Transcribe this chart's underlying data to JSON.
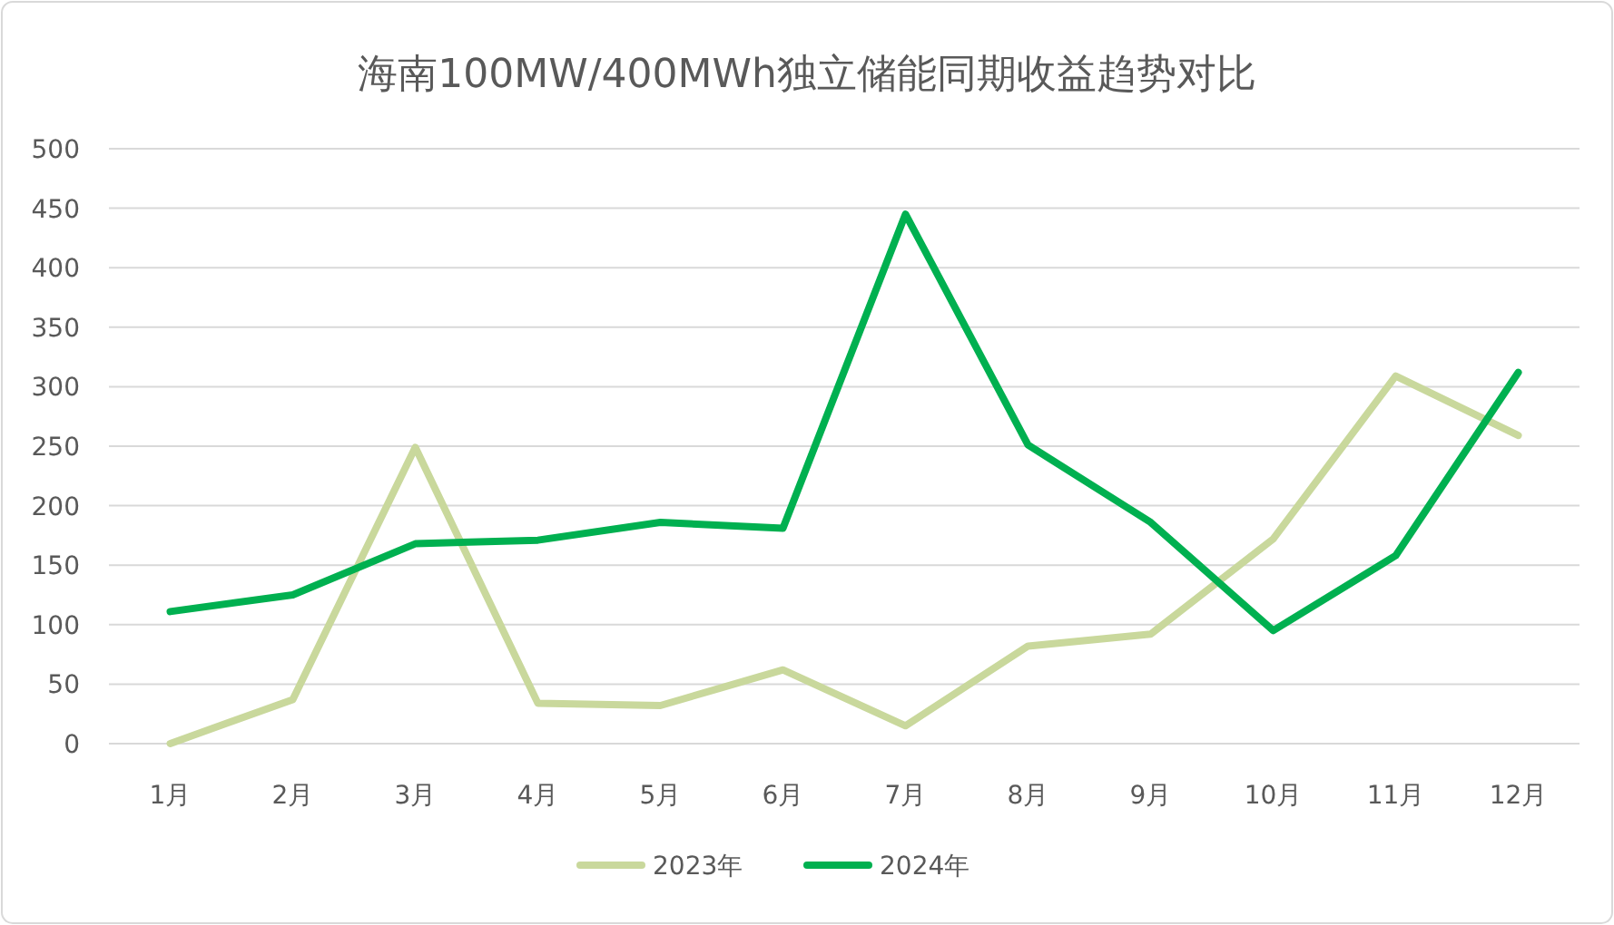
{
  "chart_data": {
    "type": "line",
    "title": "海南100MW/400MWh独立储能同期收益趋势对比",
    "categories": [
      "1月",
      "2月",
      "3月",
      "4月",
      "5月",
      "6月",
      "7月",
      "8月",
      "9月",
      "10月",
      "11月",
      "12月"
    ],
    "series": [
      {
        "name": "2023年",
        "color": "#c9d89c",
        "values": [
          0,
          37,
          249,
          34,
          32,
          62,
          15,
          82,
          92,
          172,
          309,
          259
        ]
      },
      {
        "name": "2024年",
        "color": "#00b050",
        "values": [
          111,
          125,
          168,
          171,
          186,
          181,
          445,
          251,
          186,
          95,
          158,
          312
        ]
      }
    ],
    "ylim": [
      0,
      500
    ],
    "yticks": [
      0,
      50,
      100,
      150,
      200,
      250,
      300,
      350,
      400,
      450,
      500
    ],
    "grid": "y",
    "legend": "bottom",
    "marker": "none",
    "line_style": "solid"
  }
}
